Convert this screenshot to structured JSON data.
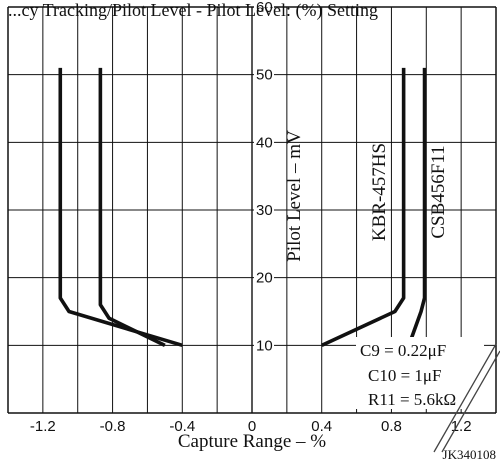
{
  "chart_data": {
    "type": "line",
    "title": "...cy Tracking/Pilot Level - Pilot Level: (%) Setting",
    "xlabel": "Capture Range – %",
    "ylabel": "Pilot Level – mV",
    "xlim": [
      -1.4,
      1.4
    ],
    "ylim": [
      0,
      60
    ],
    "x_ticks": [
      "-1.2",
      "-0.8",
      "-0.4",
      "0",
      "0.4",
      "0.8",
      "1.2"
    ],
    "y_ticks": [
      "10",
      "20",
      "30",
      "40",
      "50",
      "60"
    ],
    "grid": true,
    "series": [
      {
        "name": "KBR-457HS",
        "x": [
          -0.4,
          -1.05,
          -1.1,
          -1.1
        ],
        "y": [
          10,
          15,
          17,
          51
        ]
      },
      {
        "name": "KBR-457HS",
        "x": [
          0.4,
          0.82,
          0.87,
          0.87
        ],
        "y": [
          10,
          15,
          17,
          51
        ]
      },
      {
        "name": "CSB456F11",
        "x": [
          -0.5,
          -0.82,
          -0.87,
          -0.87
        ],
        "y": [
          10,
          14,
          16,
          51
        ]
      },
      {
        "name": "CSB456F11",
        "x": [
          0.9,
          0.97,
          0.99,
          0.99
        ],
        "y": [
          10,
          15,
          17,
          51
        ]
      }
    ],
    "annotations": [
      "C9 = 0.22μF",
      "C10 = 1μF",
      "R11 = 5.6kΩ"
    ],
    "figure_code": "JK340108"
  }
}
